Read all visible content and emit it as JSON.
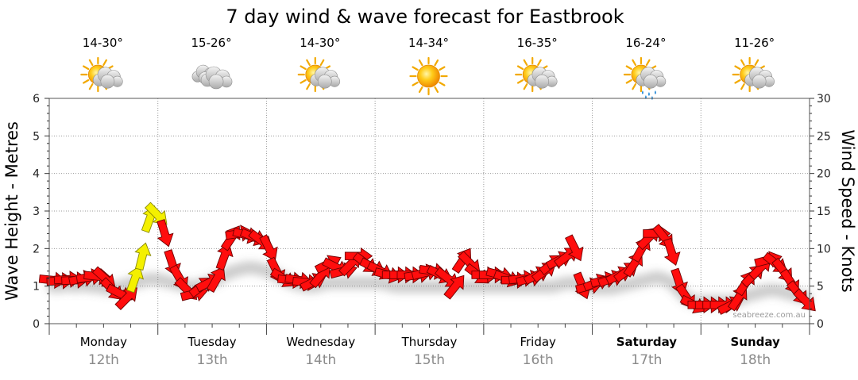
{
  "chart_data": {
    "type": "line",
    "title": "7 day wind & wave forecast for Eastbrook",
    "ylabel_left": "Wave Height - Metres",
    "ylabel_right": "Wind Speed - Knots",
    "ylim_left": [
      0,
      6
    ],
    "ylim_right": [
      0,
      30
    ],
    "yticks_left": [
      "0",
      "1",
      "2",
      "3",
      "4",
      "5",
      "6"
    ],
    "yticks_right": [
      "0",
      "5",
      "10",
      "15",
      "20",
      "25",
      "30"
    ],
    "grid": true,
    "watermark": "seabreeze.com.au",
    "days": [
      {
        "name": "Monday",
        "date": "12th",
        "temp": "14-30°",
        "weather": "partly-cloudy-icon",
        "bold": false
      },
      {
        "name": "Tuesday",
        "date": "13th",
        "temp": "15-26°",
        "weather": "cloudy-icon",
        "bold": false
      },
      {
        "name": "Wednesday",
        "date": "14th",
        "temp": "14-30°",
        "weather": "partly-cloudy-icon",
        "bold": false
      },
      {
        "name": "Thursday",
        "date": "15th",
        "temp": "14-34°",
        "weather": "sunny-icon",
        "bold": false
      },
      {
        "name": "Friday",
        "date": "16th",
        "temp": "16-35°",
        "weather": "partly-cloudy-icon",
        "bold": false
      },
      {
        "name": "Saturday",
        "date": "17th",
        "temp": "16-24°",
        "weather": "rain-icon",
        "bold": true
      },
      {
        "name": "Sunday",
        "date": "18th",
        "temp": "11-26°",
        "weather": "partly-cloudy-icon",
        "bold": true
      }
    ],
    "wind_series": {
      "name": "Wind",
      "unit": "knots",
      "values": [
        5.8,
        5.7,
        5.9,
        5.8,
        6.0,
        6.2,
        6.3,
        6.0,
        4.5,
        4.0,
        3.5,
        6.0,
        9.0,
        14.0,
        14.5,
        12.0,
        8.0,
        6.0,
        4.5,
        4.0,
        5.0,
        5.5,
        6.0,
        9.0,
        11.5,
        12.0,
        11.8,
        11.5,
        11.0,
        10.0,
        7.0,
        6.0,
        5.8,
        5.8,
        5.5,
        5.6,
        6.5,
        8.0,
        7.5,
        7.0,
        8.0,
        9.0,
        8.0,
        7.5,
        7.0,
        6.5,
        6.5,
        6.5,
        6.5,
        6.5,
        6.8,
        7.0,
        6.5,
        6.0,
        5.0,
        8.5,
        8.0,
        6.5,
        6.5,
        6.5,
        6.5,
        6.0,
        5.8,
        6.0,
        6.0,
        6.5,
        7.0,
        8.0,
        8.5,
        9.0,
        10.0,
        5.0,
        5.0,
        5.5,
        5.8,
        6.0,
        6.5,
        7.0,
        8.0,
        10.0,
        11.5,
        12.0,
        11.5,
        9.5,
        5.5,
        3.5,
        2.5,
        2.5,
        2.5,
        2.5,
        2.5,
        2.5,
        3.5,
        5.5,
        6.5,
        7.5,
        8.5,
        8.0,
        7.0,
        5.5,
        4.0,
        3.0
      ],
      "highlight_range": [
        11,
        14
      ]
    },
    "wave_series": {
      "name": "Wave",
      "unit": "metres",
      "values": [
        1.2,
        1.2,
        1.25,
        1.2,
        1.25,
        1.2,
        1.2,
        1.15,
        1.15,
        1.2,
        1.25,
        1.3,
        1.35,
        1.4,
        1.4,
        1.35,
        1.3,
        1.25,
        1.2,
        1.2,
        1.25,
        1.3,
        1.4,
        1.5,
        1.6,
        1.65,
        1.7,
        1.7,
        1.65,
        1.6,
        1.5,
        1.4,
        1.3,
        1.25,
        1.2,
        1.2,
        1.25,
        1.3,
        1.3,
        1.3,
        1.3,
        1.3,
        1.3,
        1.3,
        1.3,
        1.25,
        1.2,
        1.2,
        1.2,
        1.2,
        1.2,
        1.2,
        1.2,
        1.2,
        1.2,
        1.2,
        1.2,
        1.2,
        1.2,
        1.2,
        1.2,
        1.2,
        1.2,
        1.2,
        1.2,
        1.2,
        1.2,
        1.2,
        1.25,
        1.3,
        1.3,
        1.2,
        1.15,
        1.15,
        1.15,
        1.15,
        1.2,
        1.25,
        1.3,
        1.35,
        1.4,
        1.45,
        1.4,
        1.3,
        1.1,
        0.9,
        0.8,
        0.8,
        0.8,
        0.8,
        0.8,
        0.8,
        0.85,
        0.95,
        1.0,
        1.05,
        1.1,
        1.1,
        1.05,
        1.0,
        0.95,
        0.9
      ]
    }
  }
}
